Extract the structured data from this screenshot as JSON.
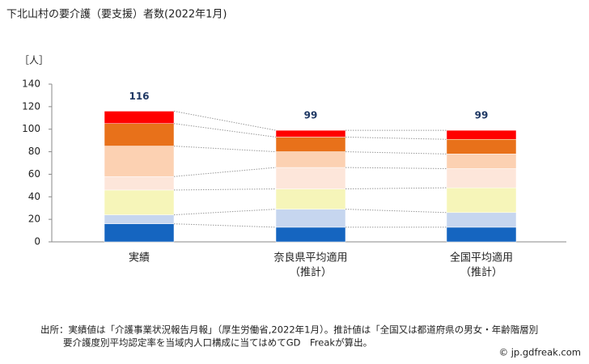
{
  "chart_data": {
    "type": "stacked-bar",
    "title": "下北山村の要介護（要支援）者数(2022年1月)",
    "y_unit_label": "［人］",
    "categories": [
      "実績",
      "奈良県平均適用",
      "全国平均適用"
    ],
    "category_notes": [
      null,
      "（推計）",
      "（推計）"
    ],
    "series": [
      {
        "color": "#1565c0",
        "values": [
          16,
          13,
          13
        ]
      },
      {
        "color": "#c6d6ef",
        "values": [
          8,
          16,
          13
        ]
      },
      {
        "color": "#f6f5b9",
        "values": [
          22,
          18,
          22
        ]
      },
      {
        "color": "#fde6da",
        "values": [
          12,
          19,
          17
        ]
      },
      {
        "color": "#fcd1b2",
        "values": [
          27,
          14,
          13
        ]
      },
      {
        "color": "#e8711a",
        "values": [
          20,
          13,
          13
        ]
      },
      {
        "color": "#ff0000",
        "values": [
          11,
          6,
          8
        ]
      }
    ],
    "totals": [
      116,
      99,
      99
    ],
    "total_color": "#1f3864",
    "ylim": [
      0,
      140
    ],
    "yticks": [
      0,
      20,
      40,
      60,
      80,
      100,
      120,
      140
    ],
    "grid": false,
    "source": [
      "出所：実績値は「介護事業状況報告月報」（厚生労働省,2022年1月）。推計値は「全国又は都道府県の男女・年齢階層別",
      "要介護度別平均認定率を当域内人口構成に当てはめてGD　Freakが算出。"
    ],
    "watermark": "© jp.gdfreak.com"
  }
}
